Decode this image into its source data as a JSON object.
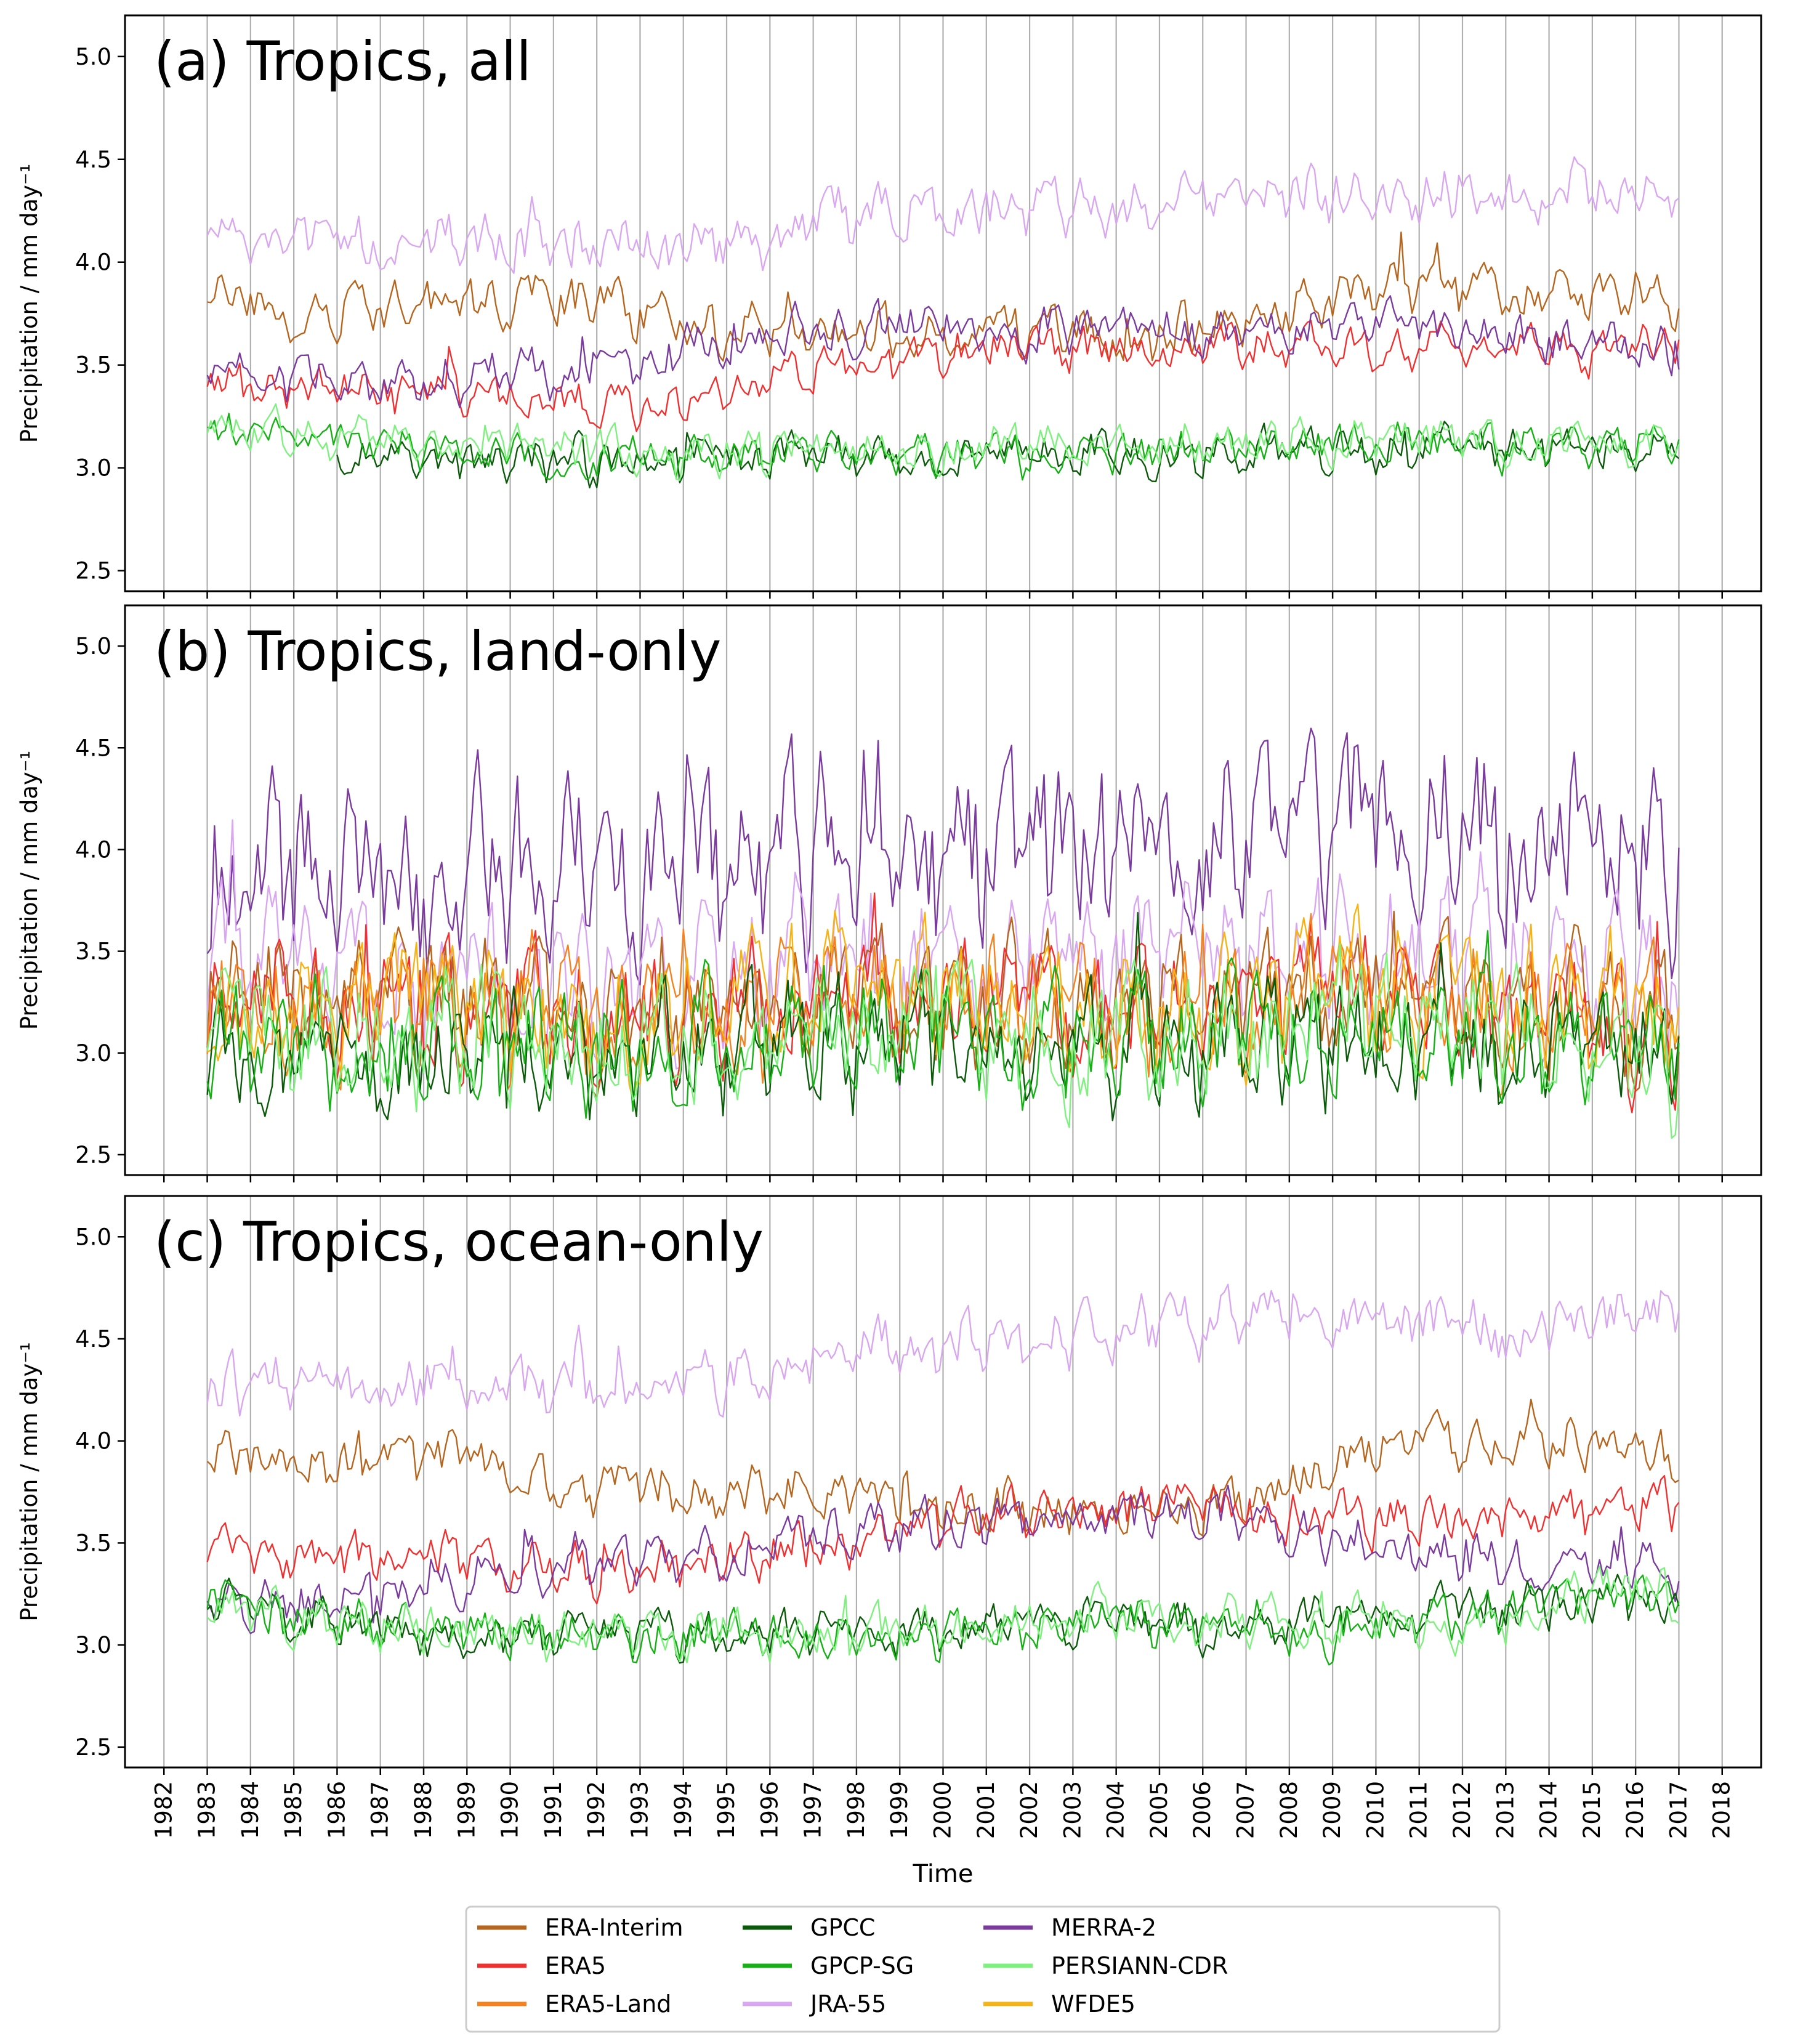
{
  "figure": {
    "xlabel": "Time",
    "x_tick_labels": [
      "1982",
      "1983",
      "1984",
      "1985",
      "1986",
      "1987",
      "1988",
      "1989",
      "1990",
      "1991",
      "1992",
      "1993",
      "1994",
      "1995",
      "1996",
      "1997",
      "1998",
      "1999",
      "2000",
      "2001",
      "2002",
      "2003",
      "2004",
      "2005",
      "2006",
      "2007",
      "2008",
      "2009",
      "2010",
      "2011",
      "2012",
      "2013",
      "2014",
      "2015",
      "2016",
      "2017",
      "2018"
    ]
  },
  "colors": {
    "ERA-Interim": "#b5651d",
    "ERA5": "#f03030",
    "ERA5-Land": "#f5821f",
    "GPCC": "#0a5a0a",
    "GPCP-SG": "#16b016",
    "JRA-55": "#d9a6f0",
    "MERRA-2": "#7b3a9e",
    "PERSIANN-CDR": "#7ef07e",
    "WFDE5": "#f5b316"
  },
  "legend": {
    "entries": [
      "ERA-Interim",
      "ERA5",
      "ERA5-Land",
      "GPCC",
      "GPCP-SG",
      "JRA-55",
      "MERRA-2",
      "PERSIANN-CDR",
      "WFDE5"
    ],
    "placement": "bottom-center"
  },
  "chart_data": [
    {
      "type": "line",
      "title": "(a) Tropics, all",
      "xlabel": "",
      "ylabel": "Precipitation / mm day⁻¹",
      "xlim": [
        1981.1,
        2018.9
      ],
      "ylim": [
        2.4,
        5.2
      ],
      "yticks": [
        "2.5",
        "3.0",
        "3.5",
        "4.0",
        "4.5",
        "5.0"
      ],
      "x_start": 1983.0,
      "x_end": 2017.0,
      "grid": "vertical at each year",
      "series": [
        {
          "name": "ERA-Interim",
          "years": [
            1983,
            1986,
            1989,
            1992,
            1995,
            1998,
            2001,
            2004,
            2007,
            2010,
            2013,
            2016,
            2017
          ],
          "mean": [
            3.82,
            3.76,
            3.8,
            3.78,
            3.66,
            3.66,
            3.66,
            3.63,
            3.72,
            3.9,
            3.85,
            3.83,
            3.8
          ],
          "amp": 0.13
        },
        {
          "name": "ERA5",
          "years": [
            1983,
            1986,
            1989,
            1992,
            1995,
            1998,
            2001,
            2004,
            2007,
            2010,
            2013,
            2016,
            2017
          ],
          "mean": [
            3.4,
            3.36,
            3.4,
            3.28,
            3.4,
            3.5,
            3.58,
            3.58,
            3.58,
            3.6,
            3.57,
            3.57,
            3.58
          ],
          "amp": 0.11
        },
        {
          "name": "MERRA-2",
          "years": [
            1983,
            1986,
            1989,
            1992,
            1995,
            1998,
            2001,
            2004,
            2007,
            2010,
            2013,
            2016,
            2017
          ],
          "mean": [
            3.45,
            3.4,
            3.45,
            3.48,
            3.62,
            3.68,
            3.68,
            3.66,
            3.68,
            3.7,
            3.62,
            3.58,
            3.58
          ],
          "amp": 0.12
        },
        {
          "name": "JRA-55",
          "years": [
            1983,
            1986,
            1989,
            1992,
            1995,
            1998,
            2001,
            2004,
            2007,
            2010,
            2013,
            2016,
            2017
          ],
          "mean": [
            4.12,
            4.1,
            4.12,
            4.04,
            4.1,
            4.22,
            4.26,
            4.28,
            4.33,
            4.33,
            4.32,
            4.35,
            4.35
          ],
          "amp": 0.14
        },
        {
          "name": "GPCC",
          "years": [
            1986,
            1989,
            1992,
            1995,
            1998,
            2001,
            2004,
            2007,
            2010,
            2013,
            2016,
            2017
          ],
          "mean": [
            3.05,
            3.04,
            3.03,
            3.06,
            3.05,
            3.07,
            3.07,
            3.08,
            3.1,
            3.09,
            3.09,
            3.09
          ],
          "amp": 0.11
        },
        {
          "name": "GPCP-SG",
          "years": [
            1983,
            1986,
            1989,
            1992,
            1995,
            1998,
            2001,
            2004,
            2007,
            2010,
            2013,
            2016,
            2017
          ],
          "mean": [
            3.18,
            3.12,
            3.08,
            3.04,
            3.06,
            3.06,
            3.08,
            3.08,
            3.1,
            3.12,
            3.1,
            3.12,
            3.12
          ],
          "amp": 0.1
        },
        {
          "name": "PERSIANN-CDR",
          "years": [
            1983,
            1986,
            1989,
            1992,
            1995,
            1998,
            2001,
            2004,
            2007,
            2010,
            2013,
            2016,
            2017
          ],
          "mean": [
            3.14,
            3.16,
            3.14,
            3.08,
            3.08,
            3.08,
            3.11,
            3.11,
            3.13,
            3.14,
            3.12,
            3.13,
            3.14
          ],
          "amp": 0.11
        }
      ]
    },
    {
      "type": "line",
      "title": "(b) Tropics, land-only",
      "xlabel": "",
      "ylabel": "Precipitation / mm day⁻¹",
      "xlim": [
        1981.1,
        2018.9
      ],
      "ylim": [
        2.4,
        5.2
      ],
      "yticks": [
        "2.5",
        "3.0",
        "3.5",
        "4.0",
        "4.5",
        "5.0"
      ],
      "x_start": 1983.0,
      "x_end": 2017.0,
      "grid": "vertical at each year",
      "series": [
        {
          "name": "MERRA-2",
          "years": [
            1983,
            1986,
            1989,
            1992,
            1995,
            1998,
            2001,
            2004,
            2007,
            2010,
            2013,
            2016,
            2017
          ],
          "mean": [
            3.95,
            3.85,
            3.95,
            3.9,
            3.95,
            4.05,
            4.0,
            4.0,
            4.05,
            4.05,
            4.0,
            3.95,
            3.95
          ],
          "amp": 0.45
        },
        {
          "name": "JRA-55",
          "years": [
            1983,
            1986,
            1989,
            1992,
            1995,
            1998,
            2001,
            2004,
            2007,
            2010,
            2013,
            2016,
            2017
          ],
          "mean": [
            3.55,
            3.35,
            3.4,
            3.3,
            3.35,
            3.45,
            3.45,
            3.45,
            3.5,
            3.55,
            3.45,
            3.4,
            3.4
          ],
          "amp": 0.35
        },
        {
          "name": "ERA-Interim",
          "years": [
            1983,
            1986,
            1989,
            1992,
            1995,
            1998,
            2001,
            2004,
            2007,
            2010,
            2013,
            2016,
            2017
          ],
          "mean": [
            3.3,
            3.25,
            3.3,
            3.2,
            3.25,
            3.3,
            3.25,
            3.2,
            3.3,
            3.3,
            3.25,
            3.2,
            3.2
          ],
          "amp": 0.3
        },
        {
          "name": "ERA5",
          "years": [
            1983,
            1986,
            1989,
            1992,
            1995,
            1998,
            2001,
            2004,
            2007,
            2010,
            2013,
            2016,
            2017
          ],
          "mean": [
            3.3,
            3.2,
            3.25,
            3.15,
            3.2,
            3.25,
            3.25,
            3.2,
            3.25,
            3.3,
            3.2,
            3.15,
            3.2
          ],
          "amp": 0.3
        },
        {
          "name": "ERA5-Land",
          "years": [
            1983,
            1986,
            1989,
            1992,
            1995,
            1998,
            2001,
            2004,
            2007,
            2010,
            2013,
            2016,
            2017
          ],
          "mean": [
            3.25,
            3.2,
            3.25,
            3.2,
            3.2,
            3.25,
            3.3,
            3.15,
            3.25,
            3.3,
            3.2,
            3.15,
            3.15
          ],
          "amp": 0.32
        },
        {
          "name": "WFDE5",
          "years": [
            1983,
            1986,
            1989,
            1992,
            1995,
            1998,
            2001,
            2004,
            2007,
            2010,
            2013,
            2016,
            2017
          ],
          "mean": [
            3.25,
            3.2,
            3.25,
            3.2,
            3.25,
            3.3,
            3.3,
            3.2,
            3.25,
            3.3,
            3.25,
            3.2,
            3.2
          ],
          "amp": 0.33
        },
        {
          "name": "GPCC",
          "years": [
            1983,
            1986,
            1989,
            1992,
            1995,
            1998,
            2001,
            2004,
            2007,
            2010,
            2013,
            2016,
            2017
          ],
          "mean": [
            3.0,
            2.95,
            3.0,
            2.95,
            3.0,
            3.05,
            3.05,
            3.0,
            3.05,
            3.05,
            3.0,
            3.0,
            3.0
          ],
          "amp": 0.3
        },
        {
          "name": "GPCP-SG",
          "years": [
            1983,
            1986,
            1989,
            1992,
            1995,
            1998,
            2001,
            2004,
            2007,
            2010,
            2013,
            2016,
            2017
          ],
          "mean": [
            3.05,
            3.0,
            3.05,
            3.0,
            3.05,
            3.1,
            3.1,
            3.05,
            3.1,
            3.1,
            3.05,
            3.0,
            3.0
          ],
          "amp": 0.3
        },
        {
          "name": "PERSIANN-CDR",
          "years": [
            1983,
            1986,
            1989,
            1992,
            1995,
            1998,
            2001,
            2004,
            2007,
            2010,
            2013,
            2016,
            2017
          ],
          "mean": [
            3.2,
            3.1,
            3.1,
            3.05,
            3.05,
            3.1,
            3.15,
            3.05,
            3.1,
            3.15,
            3.05,
            3.0,
            3.0
          ],
          "amp": 0.33
        }
      ]
    },
    {
      "type": "line",
      "title": "(c) Tropics, ocean-only",
      "xlabel": "Time",
      "ylabel": "Precipitation / mm day⁻¹",
      "xlim": [
        1981.1,
        2018.9
      ],
      "ylim": [
        2.4,
        5.2
      ],
      "yticks": [
        "2.5",
        "3.0",
        "3.5",
        "4.0",
        "4.5",
        "5.0"
      ],
      "x_start": 1983.0,
      "x_end": 2017.0,
      "grid": "vertical at each year",
      "series": [
        {
          "name": "JRA-55",
          "years": [
            1983,
            1986,
            1989,
            1992,
            1995,
            1998,
            2001,
            2004,
            2007,
            2010,
            2013,
            2016,
            2017
          ],
          "mean": [
            4.25,
            4.25,
            4.3,
            4.25,
            4.3,
            4.45,
            4.5,
            4.55,
            4.58,
            4.6,
            4.55,
            4.62,
            4.6
          ],
          "amp": 0.15
        },
        {
          "name": "ERA-Interim",
          "years": [
            1983,
            1986,
            1989,
            1992,
            1995,
            1998,
            2001,
            2004,
            2007,
            2010,
            2013,
            2016,
            2017
          ],
          "mean": [
            3.95,
            3.85,
            3.9,
            3.75,
            3.75,
            3.72,
            3.68,
            3.65,
            3.72,
            4.0,
            4.0,
            3.98,
            3.9
          ],
          "amp": 0.13
        },
        {
          "name": "ERA5",
          "years": [
            1983,
            1986,
            1989,
            1992,
            1995,
            1998,
            2001,
            2004,
            2007,
            2010,
            2013,
            2016,
            2017
          ],
          "mean": [
            3.45,
            3.4,
            3.4,
            3.35,
            3.4,
            3.55,
            3.65,
            3.65,
            3.68,
            3.62,
            3.62,
            3.65,
            3.7
          ],
          "amp": 0.13
        },
        {
          "name": "MERRA-2",
          "years": [
            1983,
            1986,
            1989,
            1992,
            1995,
            1998,
            2001,
            2004,
            2007,
            2010,
            2013,
            2016,
            2017
          ],
          "mean": [
            3.25,
            3.2,
            3.35,
            3.4,
            3.45,
            3.55,
            3.6,
            3.62,
            3.62,
            3.5,
            3.4,
            3.4,
            3.35
          ],
          "amp": 0.13
        },
        {
          "name": "GPCC",
          "years": [
            1983,
            1986,
            1989,
            1992,
            1995,
            1998,
            2001,
            2004,
            2007,
            2010,
            2013,
            2016,
            2017
          ],
          "mean": [
            3.2,
            3.1,
            3.05,
            3.05,
            3.05,
            3.05,
            3.1,
            3.15,
            3.05,
            3.15,
            3.2,
            3.2,
            3.18
          ],
          "amp": 0.12
        },
        {
          "name": "GPCP-SG",
          "years": [
            1983,
            1986,
            1989,
            1992,
            1995,
            1998,
            2001,
            2004,
            2007,
            2010,
            2013,
            2016,
            2017
          ],
          "mean": [
            3.2,
            3.1,
            3.05,
            3.05,
            3.05,
            3.05,
            3.05,
            3.15,
            3.05,
            3.1,
            3.15,
            3.25,
            3.2
          ],
          "amp": 0.12
        },
        {
          "name": "PERSIANN-CDR",
          "years": [
            1983,
            1986,
            1989,
            1992,
            1995,
            1998,
            2001,
            2004,
            2007,
            2010,
            2013,
            2016,
            2017
          ],
          "mean": [
            3.15,
            3.1,
            3.1,
            3.05,
            3.05,
            3.05,
            3.1,
            3.15,
            3.1,
            3.1,
            3.15,
            3.3,
            3.25
          ],
          "amp": 0.13
        }
      ]
    }
  ]
}
